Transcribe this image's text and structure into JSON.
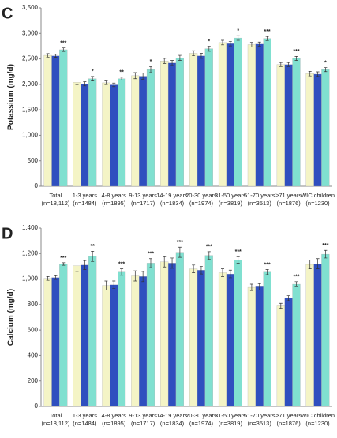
{
  "chart_data": [
    {
      "type": "bar",
      "panel": "C",
      "y_label": "Potassium (mg/d)",
      "categories": [
        "Total",
        "1-3 years",
        "4-8 years",
        "9-13 years",
        "14-19 years",
        "20-30 years",
        "31-50 years",
        "51-70 years",
        "≥71 years",
        "WIC children"
      ],
      "category_counts": [
        "(n=18,112)",
        "(n=1484)",
        "(n=1895)",
        "(n=1717)",
        "(n=1834)",
        "(n=1974)",
        "(n=3819)",
        "(n=3513)",
        "(n=1876)",
        "(n=1230)"
      ],
      "series": [
        {
          "color": "#f4f4c6",
          "values": [
            2570,
            2040,
            2030,
            2170,
            2460,
            2610,
            2820,
            2780,
            2390,
            2210
          ],
          "errors": [
            35,
            45,
            35,
            60,
            50,
            50,
            45,
            45,
            40,
            45
          ]
        },
        {
          "color": "#2f4fbf",
          "values": [
            2560,
            2010,
            1990,
            2160,
            2420,
            2560,
            2800,
            2790,
            2390,
            2200
          ],
          "errors": [
            30,
            40,
            35,
            60,
            50,
            50,
            45,
            40,
            40,
            45
          ]
        },
        {
          "color": "#80e0d0",
          "values": [
            2680,
            2110,
            2110,
            2290,
            2520,
            2700,
            2910,
            2900,
            2510,
            2290
          ],
          "errors": [
            35,
            45,
            30,
            60,
            50,
            50,
            45,
            40,
            40,
            40
          ],
          "significance": [
            "***",
            "*",
            "**",
            "*",
            null,
            "*",
            "*",
            "***",
            "***",
            "*"
          ]
        }
      ],
      "ylim": [
        0,
        3500
      ],
      "yticks": [
        0,
        500,
        {
          "value": 1000,
          "label": "1,000"
        },
        {
          "value": 1500,
          "label": "1,500"
        },
        {
          "value": 2000,
          "label": "2,000"
        },
        {
          "value": 2500,
          "label": "2,500"
        },
        {
          "value": 3000,
          "label": "3,000"
        },
        {
          "value": 3500,
          "label": "3,500"
        }
      ],
      "grid": false
    },
    {
      "type": "bar",
      "panel": "D",
      "y_label": "Calcium (mg/d)",
      "categories": [
        "Total",
        "1-3 years",
        "4-8 years",
        "9-13 years",
        "14-19 years",
        "20-30 years",
        "31-50 years",
        "51-70 years",
        "≥71 years",
        "WIC children"
      ],
      "category_counts": [
        "(n=18,112)",
        "(n=1484)",
        "(n=1895)",
        "(n=1717)",
        "(n=1834)",
        "(n=1974)",
        "(n=3819)",
        "(n=3513)",
        "(n=1876)",
        "(n=1230)"
      ],
      "series": [
        {
          "color": "#f4f4c6",
          "values": [
            1005,
            1105,
            950,
            1025,
            1135,
            1080,
            1050,
            935,
            790,
            1115
          ],
          "errors": [
            15,
            45,
            35,
            40,
            40,
            30,
            30,
            25,
            20,
            35
          ]
        },
        {
          "color": "#2f4fbf",
          "values": [
            1012,
            1110,
            955,
            1020,
            1125,
            1070,
            1040,
            940,
            850,
            1120
          ],
          "errors": [
            15,
            35,
            30,
            40,
            40,
            30,
            30,
            25,
            20,
            40
          ]
        },
        {
          "color": "#80e0d0",
          "values": [
            1118,
            1178,
            1055,
            1125,
            1210,
            1185,
            1150,
            1055,
            960,
            1195
          ],
          "errors": [
            10,
            40,
            25,
            35,
            40,
            30,
            25,
            20,
            20,
            30
          ],
          "significance": [
            "***",
            "**",
            "***",
            "***",
            "***",
            "***",
            "***",
            "***",
            "***",
            "***"
          ]
        }
      ],
      "ylim": [
        0,
        1400
      ],
      "yticks": [
        0,
        200,
        400,
        600,
        800,
        {
          "value": 1000,
          "label": "1,000"
        },
        {
          "value": 1200,
          "label": "1,200"
        },
        {
          "value": 1400,
          "label": "1,400"
        }
      ],
      "grid": false
    }
  ]
}
